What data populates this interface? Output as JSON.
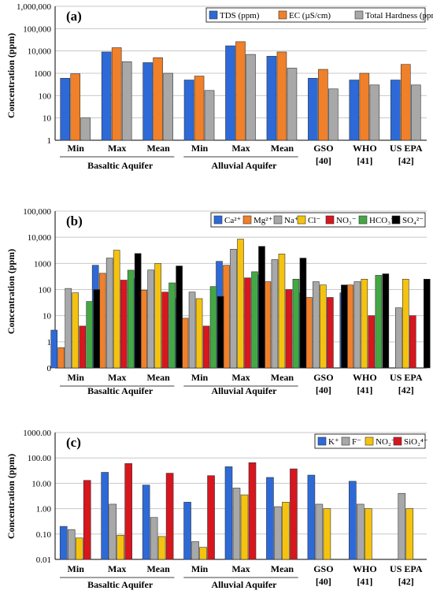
{
  "colors": {
    "blue": "#2d6ad8",
    "orange": "#f0802a",
    "gray": "#a8a8a8",
    "yellow": "#f5c30f",
    "red": "#d7161e",
    "green": "#43a844",
    "black": "#000000"
  },
  "chart_data": [
    {
      "type": "bar",
      "panel_label": "(a)",
      "ylabel": "Concentration (ppm)",
      "yscale": "log",
      "ylim": [
        1,
        1000000
      ],
      "ytick_labels": [
        "1",
        "10",
        "100",
        "1000",
        "10,000",
        "100,000",
        "1,000,000"
      ],
      "grid": "horizontal",
      "legend_position": "top-right",
      "categories": [
        {
          "line1": "Min",
          "line2": ""
        },
        {
          "line1": "Max",
          "line2": ""
        },
        {
          "line1": "Mean",
          "line2": ""
        },
        {
          "line1": "Min",
          "line2": ""
        },
        {
          "line1": "Max",
          "line2": ""
        },
        {
          "line1": "Mean",
          "line2": ""
        },
        {
          "line1": "GSO",
          "line2": "[40]"
        },
        {
          "line1": "WHO",
          "line2": "[41]"
        },
        {
          "line1": "US EPA",
          "line2": "[42]"
        }
      ],
      "groups": [
        "Basaltic Aquifer",
        "Alluvial Aquifer"
      ],
      "series": [
        {
          "name": "TDS (ppm)",
          "color": "#2d6ad8",
          "values": [
            600,
            9000,
            3000,
            500,
            17000,
            5800,
            600,
            500,
            500
          ]
        },
        {
          "name": "EC (µS/cm)",
          "color": "#f0802a",
          "values": [
            950,
            14000,
            5000,
            750,
            26000,
            9000,
            1500,
            1000,
            2500
          ]
        },
        {
          "name": "Total Hardness (ppm)",
          "color": "#a8a8a8",
          "values": [
            10,
            3300,
            1000,
            170,
            7000,
            1700,
            200,
            300,
            300
          ]
        }
      ]
    },
    {
      "type": "bar",
      "panel_label": "(b)",
      "ylabel": "Concentration (ppm)",
      "yscale": "log",
      "ylim": [
        0,
        100000
      ],
      "ytick_labels": [
        "0",
        "1",
        "10",
        "100",
        "1000",
        "10,000",
        "100,000"
      ],
      "grid": "horizontal",
      "legend_position": "top-right",
      "categories": [
        {
          "line1": "Min",
          "line2": ""
        },
        {
          "line1": "Max",
          "line2": ""
        },
        {
          "line1": "Mean",
          "line2": ""
        },
        {
          "line1": "Min",
          "line2": ""
        },
        {
          "line1": "Max",
          "line2": ""
        },
        {
          "line1": "Mean",
          "line2": ""
        },
        {
          "line1": "GSO",
          "line2": "[40]"
        },
        {
          "line1": "WHO",
          "line2": "[41]"
        },
        {
          "line1": "US EPA",
          "line2": "[42]"
        }
      ],
      "groups": [
        "Basaltic Aquifer",
        "Alluvial Aquifer"
      ],
      "series": [
        {
          "name": "Ca²⁺",
          "color": "#2d6ad8",
          "values": [
            2.8,
            850,
            260,
            45,
            1200,
            360,
            75,
            75,
            null
          ]
        },
        {
          "name": "Mg²⁺",
          "color": "#f0802a",
          "values": [
            0.6,
            420,
            95,
            8,
            850,
            200,
            50,
            150,
            null
          ]
        },
        {
          "name": "Na⁺",
          "color": "#a8a8a8",
          "values": [
            110,
            1600,
            560,
            80,
            3500,
            1400,
            200,
            200,
            20
          ]
        },
        {
          "name": "Cl⁻",
          "color": "#f5c30f",
          "values": [
            75,
            3200,
            1000,
            45,
            8500,
            2300,
            150,
            250,
            250
          ]
        },
        {
          "name": "NO₃⁻",
          "color": "#d7161e",
          "values": [
            4,
            230,
            80,
            4,
            280,
            100,
            50,
            10,
            10
          ]
        },
        {
          "name": "HCO₃⁻",
          "color": "#43a844",
          "values": [
            35,
            550,
            180,
            130,
            480,
            250,
            null,
            350,
            null
          ]
        },
        {
          "name": "SO₄²⁻",
          "color": "#000000",
          "values": [
            100,
            2400,
            800,
            55,
            4500,
            1600,
            150,
            400,
            250
          ]
        }
      ]
    },
    {
      "type": "bar",
      "panel_label": "(c)",
      "ylabel": "Concentration (ppm)",
      "yscale": "log",
      "ylim": [
        0.01,
        1000
      ],
      "ytick_labels": [
        "0.01",
        "0.10",
        "1.00",
        "10.00",
        "100.00",
        "1000.00"
      ],
      "grid": "horizontal",
      "legend_position": "top-right",
      "categories": [
        {
          "line1": "Min",
          "line2": ""
        },
        {
          "line1": "Max",
          "line2": ""
        },
        {
          "line1": "Mean",
          "line2": ""
        },
        {
          "line1": "Min",
          "line2": ""
        },
        {
          "line1": "Max",
          "line2": ""
        },
        {
          "line1": "Mean",
          "line2": ""
        },
        {
          "line1": "GSO",
          "line2": "[40]"
        },
        {
          "line1": "WHO",
          "line2": "[41]"
        },
        {
          "line1": "US EPA",
          "line2": "[42]"
        }
      ],
      "groups": [
        "Basaltic Aquifer",
        "Alluvial Aquifer"
      ],
      "series": [
        {
          "name": "K⁺",
          "color": "#2d6ad8",
          "values": [
            0.2,
            27,
            8.5,
            1.8,
            45,
            17,
            21,
            12,
            null
          ]
        },
        {
          "name": "F⁻",
          "color": "#a8a8a8",
          "values": [
            0.15,
            1.5,
            0.45,
            0.05,
            6.5,
            1.2,
            1.5,
            1.5,
            4
          ]
        },
        {
          "name": "NO₂⁻",
          "color": "#f5c30f",
          "values": [
            0.07,
            0.09,
            0.08,
            0.03,
            3.5,
            1.8,
            1,
            1,
            1
          ]
        },
        {
          "name": "SiO₂⁴⁻",
          "color": "#d7161e",
          "values": [
            13,
            60,
            25,
            20,
            65,
            37,
            null,
            null,
            null
          ]
        }
      ]
    }
  ]
}
